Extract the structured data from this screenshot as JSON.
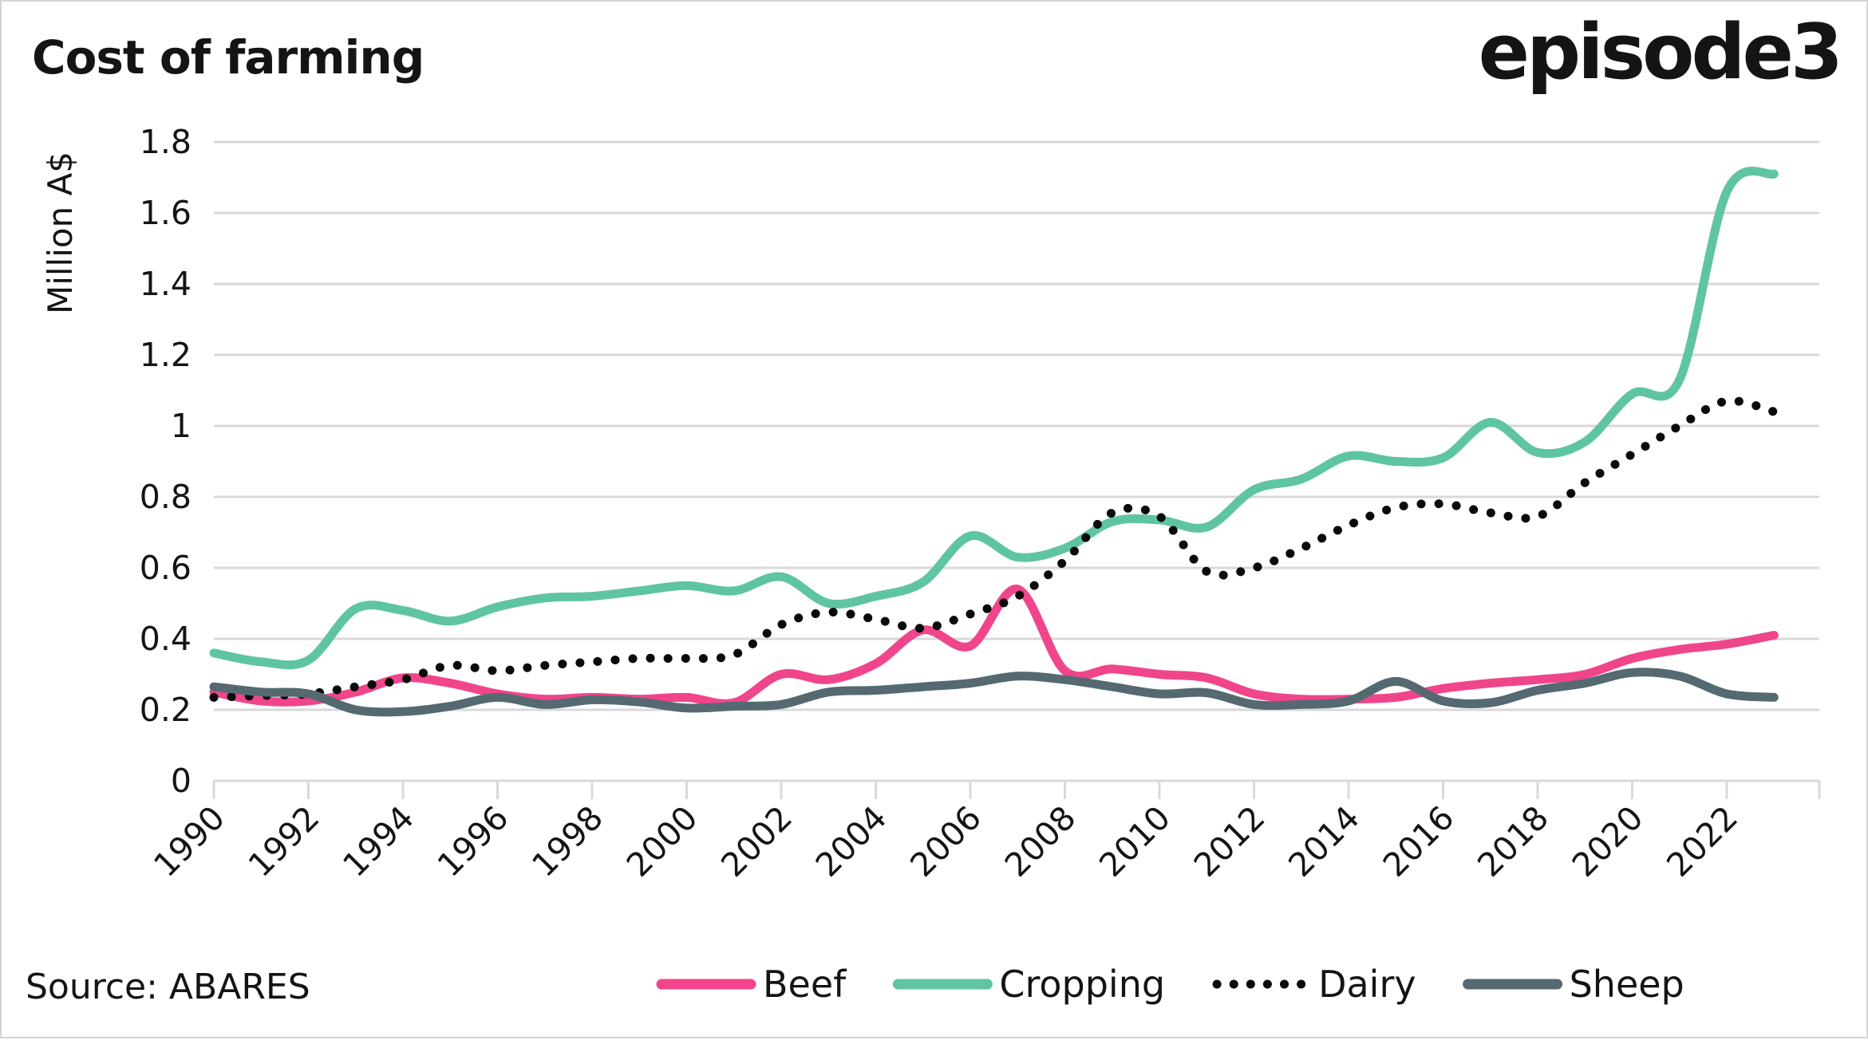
{
  "header": {
    "title": "Cost of farming",
    "logo": "episode3"
  },
  "footer": {
    "source": "Source: ABARES"
  },
  "colors": {
    "beef": "#f0458b",
    "cropping": "#5fc5a1",
    "dairy": "#0a0a0a",
    "sheep": "#546a70",
    "grid": "#d9d9d9",
    "text": "#141414",
    "background": "#ffffff"
  },
  "chart_data": {
    "type": "line",
    "title": "Cost of farming",
    "y_axis_title": "Million A$",
    "grid": "horizontal",
    "legend_position": "bottom",
    "ylim": [
      0,
      1.8
    ],
    "x": [
      1990,
      1991,
      1992,
      1993,
      1994,
      1995,
      1996,
      1997,
      1998,
      1999,
      2000,
      2001,
      2002,
      2003,
      2004,
      2005,
      2006,
      2007,
      2008,
      2009,
      2010,
      2011,
      2012,
      2013,
      2014,
      2015,
      2016,
      2017,
      2018,
      2019,
      2020,
      2021,
      2022,
      2023
    ],
    "x_tick_labels": [
      "1990",
      "1992",
      "1994",
      "1996",
      "1998",
      "2000",
      "2002",
      "2004",
      "2006",
      "2008",
      "2010",
      "2012",
      "2014",
      "2016",
      "2018",
      "2020",
      "2022"
    ],
    "y_tick_labels": [
      "0",
      "0.2",
      "0.4",
      "0.6",
      "0.8",
      "1",
      "1.2",
      "1.4",
      "1.6",
      "1.8"
    ],
    "series": [
      {
        "name": "Beef",
        "color": "#f0458b",
        "style": "solid",
        "values": [
          0.25,
          0.225,
          0.225,
          0.25,
          0.29,
          0.275,
          0.245,
          0.23,
          0.235,
          0.23,
          0.235,
          0.22,
          0.3,
          0.285,
          0.33,
          0.425,
          0.38,
          0.54,
          0.31,
          0.315,
          0.3,
          0.29,
          0.245,
          0.23,
          0.23,
          0.235,
          0.26,
          0.275,
          0.285,
          0.3,
          0.345,
          0.37,
          0.385,
          0.41
        ]
      },
      {
        "name": "Cropping",
        "color": "#5fc5a1",
        "style": "solid",
        "values": [
          0.36,
          0.335,
          0.34,
          0.485,
          0.48,
          0.45,
          0.49,
          0.515,
          0.52,
          0.535,
          0.55,
          0.535,
          0.575,
          0.5,
          0.52,
          0.56,
          0.69,
          0.63,
          0.655,
          0.73,
          0.735,
          0.715,
          0.82,
          0.85,
          0.915,
          0.9,
          0.91,
          1.01,
          0.925,
          0.955,
          1.09,
          1.13,
          1.66,
          1.71
        ]
      },
      {
        "name": "Dairy",
        "color": "#0a0a0a",
        "style": "dotted",
        "values": [
          0.235,
          0.24,
          0.245,
          0.265,
          0.285,
          0.325,
          0.31,
          0.325,
          0.335,
          0.345,
          0.345,
          0.355,
          0.44,
          0.475,
          0.455,
          0.43,
          0.47,
          0.52,
          0.62,
          0.755,
          0.745,
          0.59,
          0.6,
          0.655,
          0.72,
          0.77,
          0.78,
          0.755,
          0.745,
          0.84,
          0.92,
          1.0,
          1.07,
          1.04
        ]
      },
      {
        "name": "Sheep",
        "color": "#546a70",
        "style": "solid",
        "values": [
          0.265,
          0.25,
          0.245,
          0.2,
          0.195,
          0.21,
          0.235,
          0.215,
          0.228,
          0.222,
          0.205,
          0.21,
          0.215,
          0.25,
          0.255,
          0.265,
          0.275,
          0.295,
          0.285,
          0.265,
          0.245,
          0.248,
          0.215,
          0.215,
          0.225,
          0.28,
          0.225,
          0.22,
          0.255,
          0.275,
          0.305,
          0.295,
          0.245,
          0.235
        ]
      }
    ]
  }
}
